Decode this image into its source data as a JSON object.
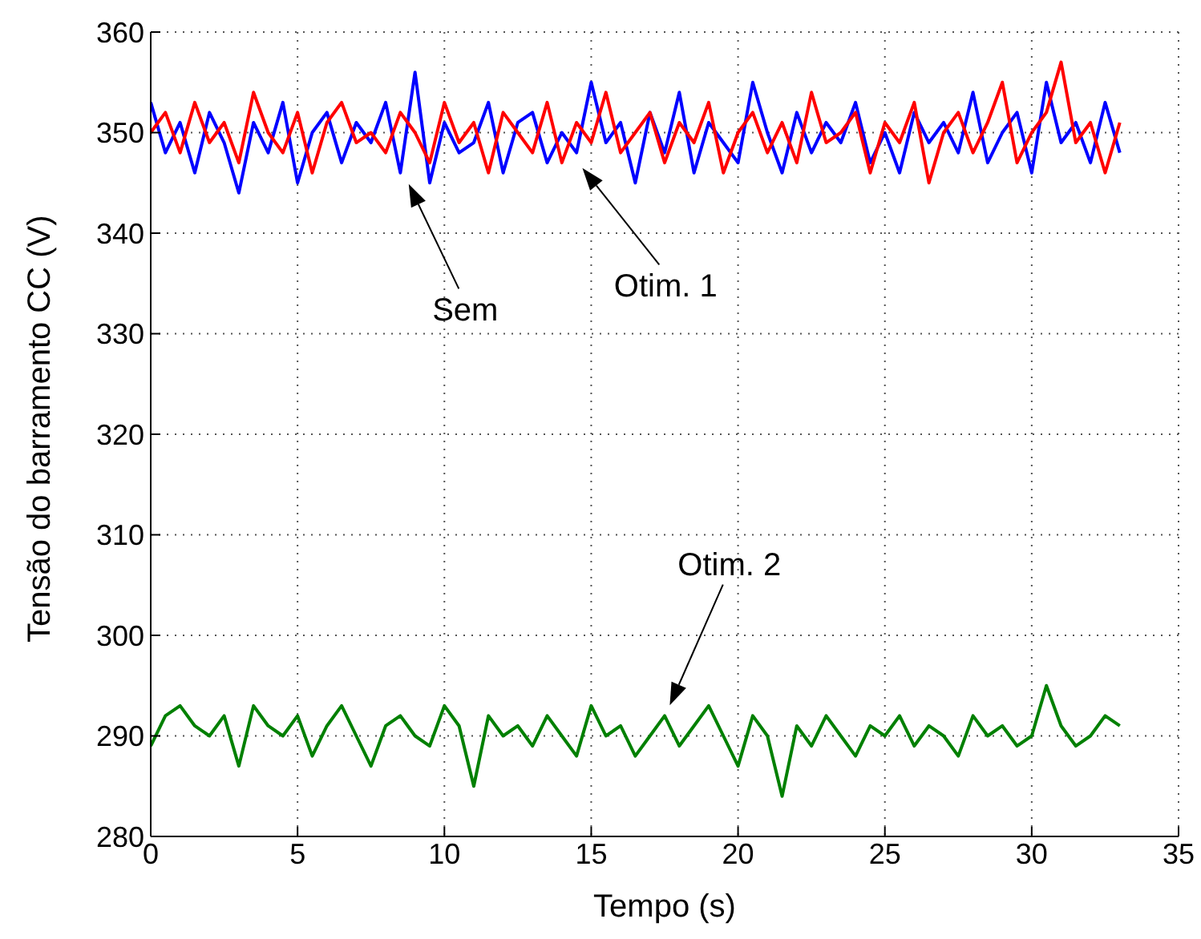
{
  "chart_data": {
    "type": "line",
    "xlabel": "Tempo (s)",
    "ylabel": "Tensão do barramento CC (V)",
    "x": [
      0,
      0.5,
      1,
      1.5,
      2,
      2.5,
      3,
      3.5,
      4,
      4.5,
      5,
      5.5,
      6,
      6.5,
      7,
      7.5,
      8,
      8.5,
      9,
      9.5,
      10,
      10.5,
      11,
      11.5,
      12,
      12.5,
      13,
      13.5,
      14,
      14.5,
      15,
      15.5,
      16,
      16.5,
      17,
      17.5,
      18,
      18.5,
      19,
      19.5,
      20,
      20.5,
      21,
      21.5,
      22,
      22.5,
      23,
      23.5,
      24,
      24.5,
      25,
      25.5,
      26,
      26.5,
      27,
      27.5,
      28,
      28.5,
      29,
      29.5,
      30,
      30.5,
      31,
      31.5,
      32,
      32.5,
      33
    ],
    "series": [
      {
        "color": "#0000ff",
        "values": [
          353,
          348,
          351,
          346,
          352,
          349,
          344,
          351,
          348,
          353,
          345,
          350,
          352,
          347,
          351,
          349,
          353,
          346,
          356,
          345,
          351,
          348,
          349,
          353,
          346,
          351,
          352,
          347,
          350,
          348,
          355,
          349,
          351,
          345,
          352,
          348,
          354,
          346,
          351,
          349,
          347,
          355,
          350,
          346,
          352,
          348,
          351,
          349,
          353,
          347,
          350,
          346,
          352,
          349,
          351,
          348,
          354,
          347,
          350,
          352,
          346,
          355,
          349,
          351,
          347,
          353,
          348
        ]
      },
      {
        "color": "#ff0000",
        "values": [
          350,
          352,
          348,
          353,
          349,
          351,
          347,
          354,
          350,
          348,
          352,
          346,
          351,
          353,
          349,
          350,
          348,
          352,
          350,
          347,
          353,
          349,
          351,
          346,
          352,
          350,
          348,
          353,
          347,
          351,
          349,
          354,
          348,
          350,
          352,
          347,
          351,
          349,
          353,
          346,
          350,
          352,
          348,
          351,
          347,
          354,
          349,
          350,
          352,
          346,
          351,
          349,
          353,
          345,
          350,
          352,
          348,
          351,
          355,
          347,
          350,
          352,
          357,
          349,
          351,
          346,
          351
        ]
      },
      {
        "color": "#008000",
        "values": [
          289,
          292,
          293,
          291,
          290,
          292,
          287,
          293,
          291,
          290,
          292,
          288,
          291,
          293,
          290,
          287,
          291,
          292,
          290,
          289,
          293,
          291,
          285,
          292,
          290,
          291,
          289,
          292,
          290,
          288,
          293,
          290,
          291,
          288,
          290,
          292,
          289,
          291,
          293,
          290,
          287,
          292,
          290,
          284,
          291,
          289,
          292,
          290,
          288,
          291,
          290,
          292,
          289,
          291,
          290,
          288,
          292,
          290,
          291,
          289,
          290,
          295,
          291,
          289,
          290,
          292,
          291
        ]
      }
    ],
    "xlim": [
      0,
      35
    ],
    "xticks": [
      0,
      5,
      10,
      15,
      20,
      25,
      30,
      35
    ],
    "ylim": [
      280,
      360
    ],
    "yticks": [
      280,
      290,
      300,
      310,
      320,
      330,
      340,
      350,
      360
    ],
    "grid": true,
    "annotations": [
      "Sem",
      "Otim. 1",
      "Otim. 2"
    ]
  }
}
